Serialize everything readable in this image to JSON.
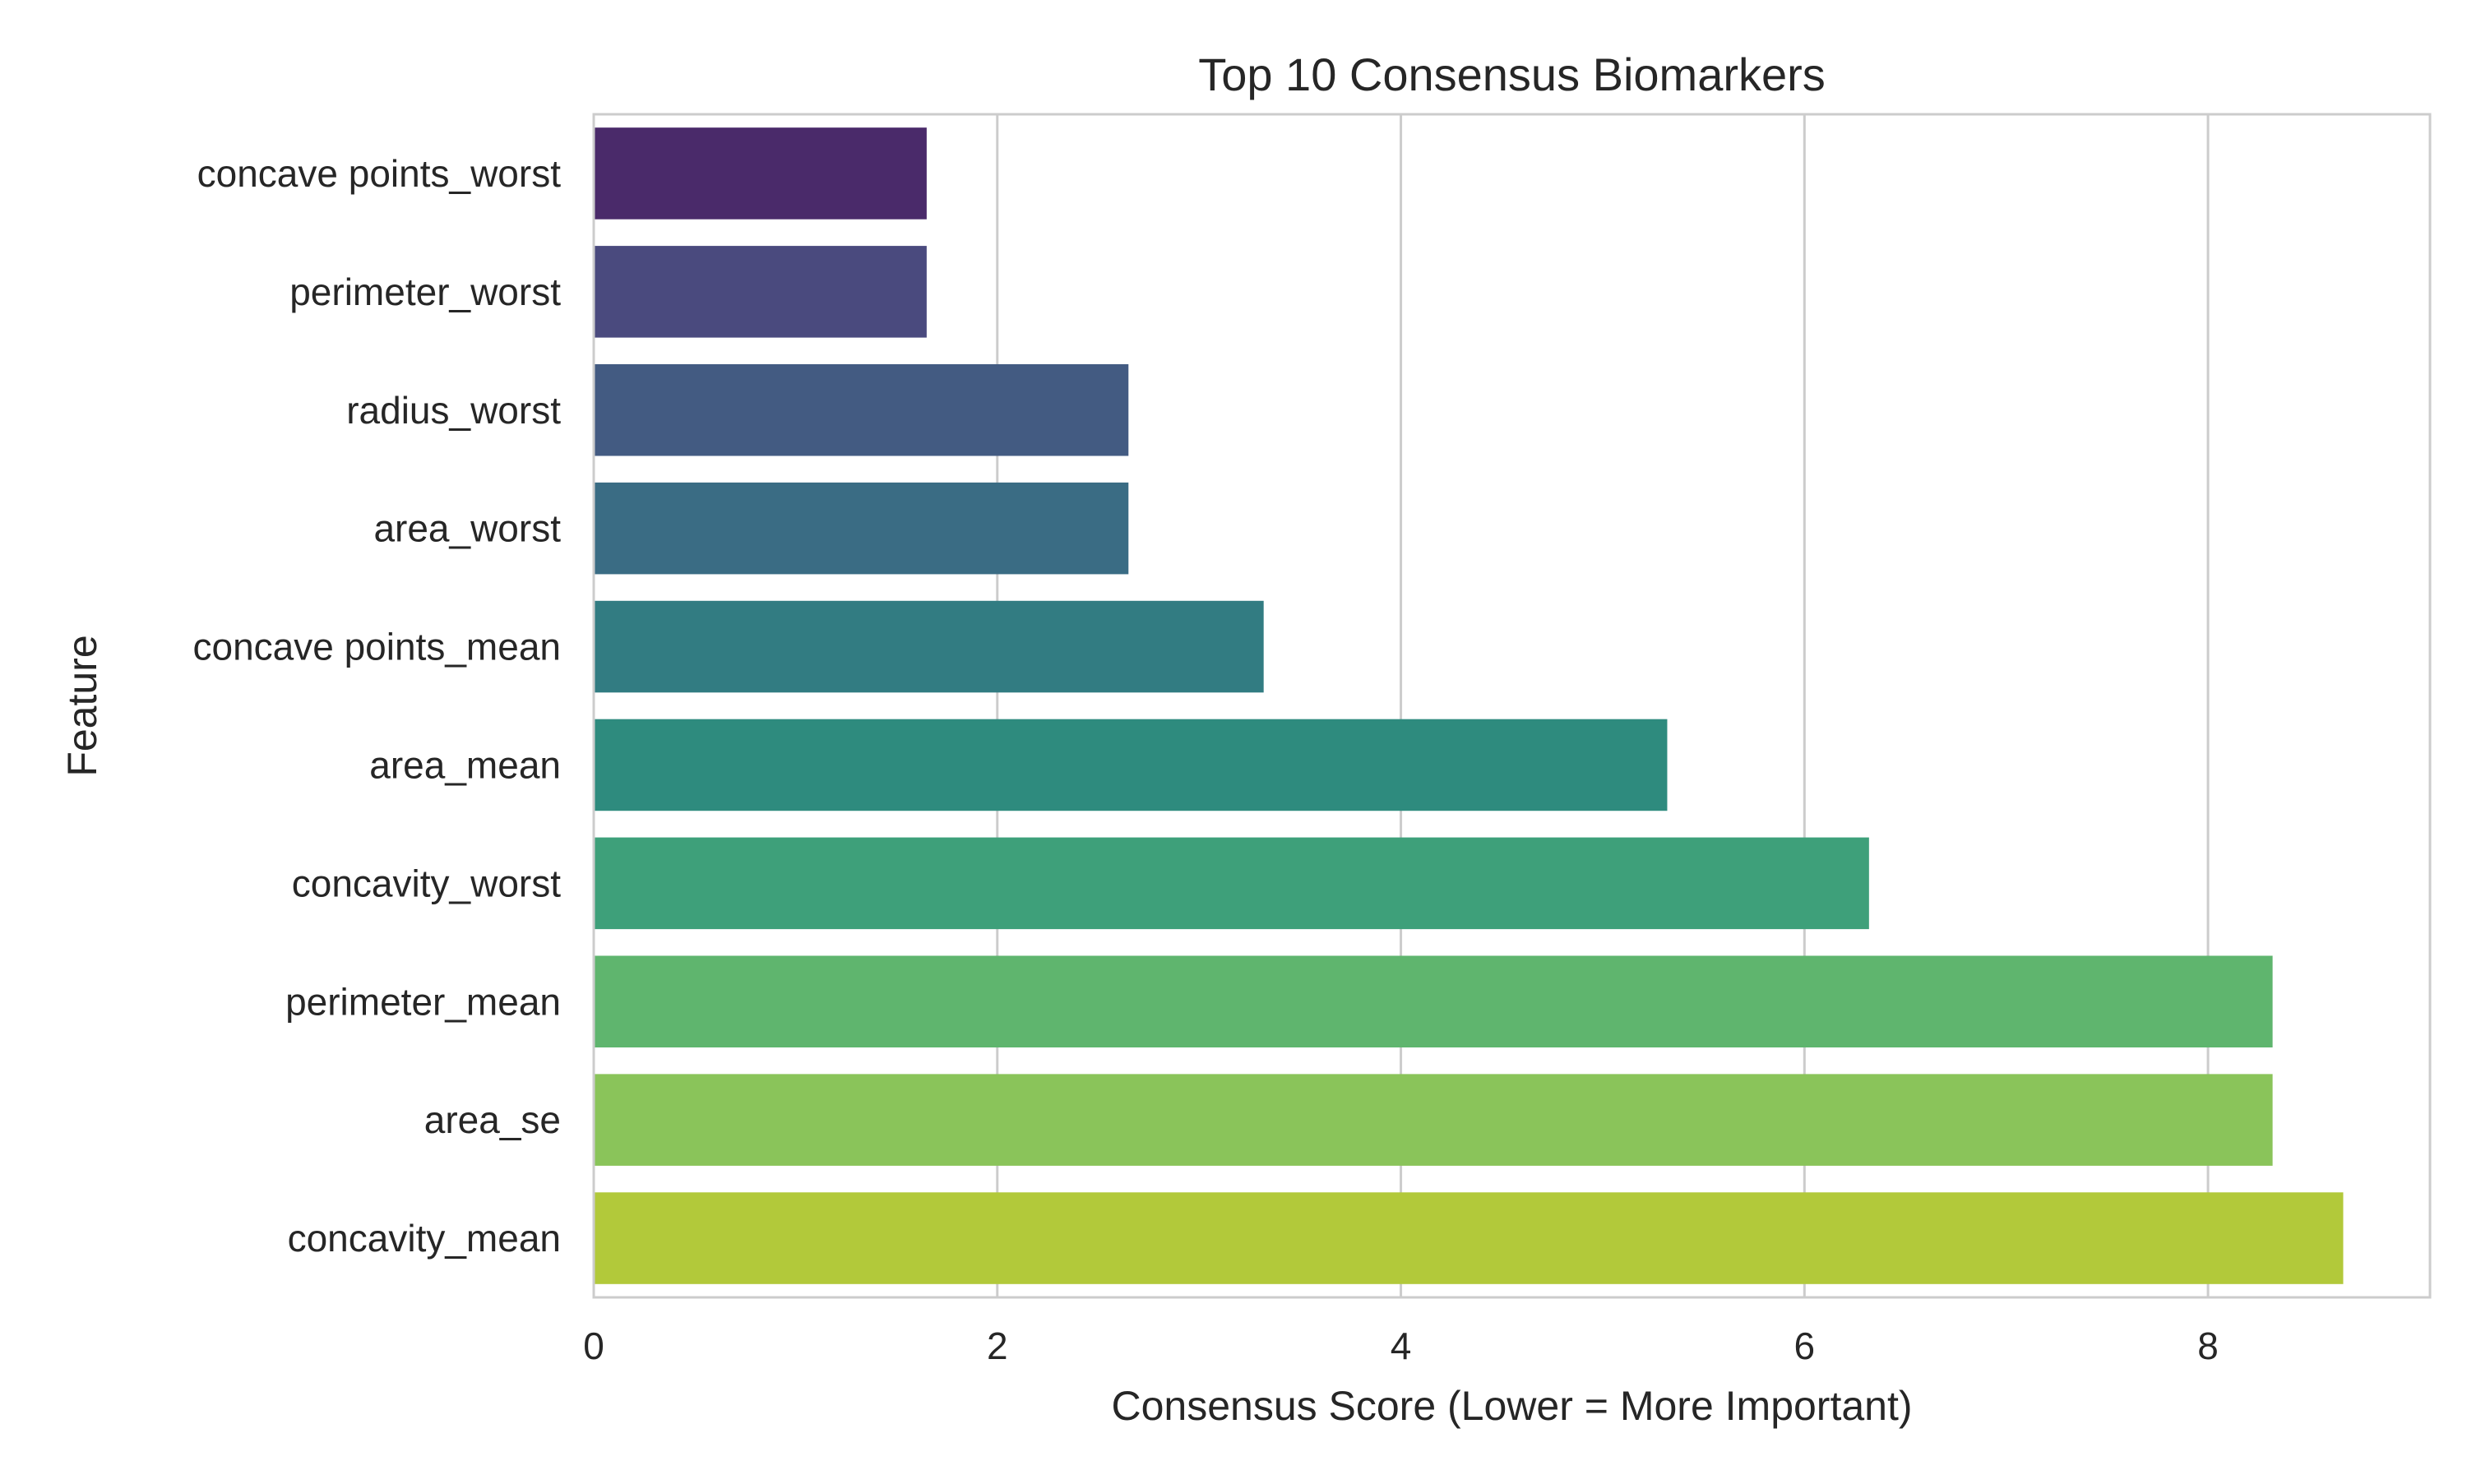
{
  "chart_data": {
    "type": "bar",
    "orientation": "horizontal",
    "title": "Top 10 Consensus Biomarkers",
    "xlabel": "Consensus Score (Lower = More Important)",
    "ylabel": "Feature",
    "xlim": [
      0,
      9.1
    ],
    "xticks": [
      0,
      2,
      4,
      6,
      8
    ],
    "grid": true,
    "grid_axis": "x",
    "categories": [
      "concave points_worst",
      "perimeter_worst",
      "radius_worst",
      "area_worst",
      "concave points_mean",
      "area_mean",
      "concavity_worst",
      "perimeter_mean",
      "area_se",
      "concavity_mean"
    ],
    "values": [
      1.65,
      1.65,
      2.65,
      2.65,
      3.32,
      5.32,
      6.32,
      8.32,
      8.32,
      8.67
    ],
    "colors": [
      "#4a2a6a",
      "#4a4a7e",
      "#435b82",
      "#3a6c84",
      "#327c82",
      "#2e8b7e",
      "#3ea07a",
      "#5fb56e",
      "#8ac45a",
      "#b2c93a"
    ],
    "colormap": "viridis"
  }
}
